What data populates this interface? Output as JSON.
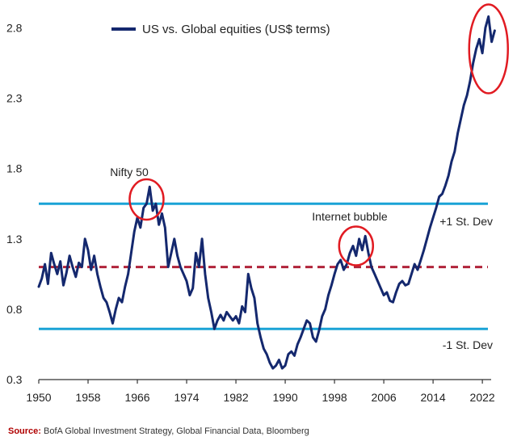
{
  "chart_data": {
    "type": "line",
    "title": "",
    "xlabel": "",
    "ylabel": "",
    "xlim": [
      1950,
      2025
    ],
    "ylim": [
      0.3,
      2.9
    ],
    "x_ticks": [
      1950,
      1958,
      1966,
      1974,
      1982,
      1990,
      1998,
      2006,
      2014,
      2022
    ],
    "y_ticks": [
      0.3,
      0.8,
      1.3,
      1.8,
      2.3,
      2.8
    ],
    "legend": "top-center",
    "series": [
      {
        "name": "US vs. Global equities (US$ terms)",
        "color": "#14286e",
        "points": [
          [
            1950,
            0.96
          ],
          [
            1950.5,
            1.02
          ],
          [
            1951,
            1.12
          ],
          [
            1951.5,
            0.98
          ],
          [
            1952,
            1.2
          ],
          [
            1952.5,
            1.12
          ],
          [
            1953,
            1.05
          ],
          [
            1953.5,
            1.14
          ],
          [
            1954,
            0.97
          ],
          [
            1954.5,
            1.06
          ],
          [
            1955,
            1.18
          ],
          [
            1955.5,
            1.1
          ],
          [
            1956,
            1.03
          ],
          [
            1956.5,
            1.13
          ],
          [
            1957,
            1.1
          ],
          [
            1957.5,
            1.3
          ],
          [
            1958,
            1.22
          ],
          [
            1958.5,
            1.08
          ],
          [
            1959,
            1.18
          ],
          [
            1959.5,
            1.05
          ],
          [
            1960,
            0.96
          ],
          [
            1960.5,
            0.88
          ],
          [
            1961,
            0.85
          ],
          [
            1961.5,
            0.78
          ],
          [
            1962,
            0.7
          ],
          [
            1962.5,
            0.8
          ],
          [
            1963,
            0.88
          ],
          [
            1963.5,
            0.85
          ],
          [
            1964,
            0.96
          ],
          [
            1964.5,
            1.05
          ],
          [
            1965,
            1.2
          ],
          [
            1965.5,
            1.35
          ],
          [
            1966,
            1.45
          ],
          [
            1966.5,
            1.38
          ],
          [
            1967,
            1.52
          ],
          [
            1967.5,
            1.55
          ],
          [
            1968,
            1.67
          ],
          [
            1968.5,
            1.5
          ],
          [
            1969,
            1.55
          ],
          [
            1969.5,
            1.4
          ],
          [
            1970,
            1.48
          ],
          [
            1970.5,
            1.38
          ],
          [
            1971,
            1.1
          ],
          [
            1971.5,
            1.2
          ],
          [
            1972,
            1.3
          ],
          [
            1972.5,
            1.18
          ],
          [
            1973,
            1.1
          ],
          [
            1973.5,
            1.05
          ],
          [
            1974,
            1.0
          ],
          [
            1974.5,
            0.9
          ],
          [
            1975,
            0.95
          ],
          [
            1975.5,
            1.2
          ],
          [
            1976,
            1.1
          ],
          [
            1976.5,
            1.3
          ],
          [
            1977,
            1.05
          ],
          [
            1977.5,
            0.88
          ],
          [
            1978,
            0.78
          ],
          [
            1978.5,
            0.66
          ],
          [
            1979,
            0.72
          ],
          [
            1979.5,
            0.76
          ],
          [
            1980,
            0.72
          ],
          [
            1980.5,
            0.78
          ],
          [
            1981,
            0.75
          ],
          [
            1981.5,
            0.72
          ],
          [
            1982,
            0.75
          ],
          [
            1982.5,
            0.7
          ],
          [
            1983,
            0.82
          ],
          [
            1983.5,
            0.78
          ],
          [
            1984,
            1.05
          ],
          [
            1984.5,
            0.95
          ],
          [
            1985,
            0.88
          ],
          [
            1985.5,
            0.7
          ],
          [
            1986,
            0.6
          ],
          [
            1986.5,
            0.52
          ],
          [
            1987,
            0.48
          ],
          [
            1987.5,
            0.42
          ],
          [
            1988,
            0.38
          ],
          [
            1988.5,
            0.4
          ],
          [
            1989,
            0.44
          ],
          [
            1989.5,
            0.38
          ],
          [
            1990,
            0.4
          ],
          [
            1990.5,
            0.48
          ],
          [
            1991,
            0.5
          ],
          [
            1991.5,
            0.47
          ],
          [
            1992,
            0.55
          ],
          [
            1992.5,
            0.6
          ],
          [
            1993,
            0.66
          ],
          [
            1993.5,
            0.72
          ],
          [
            1994,
            0.7
          ],
          [
            1994.5,
            0.6
          ],
          [
            1995,
            0.57
          ],
          [
            1995.5,
            0.65
          ],
          [
            1996,
            0.75
          ],
          [
            1996.5,
            0.8
          ],
          [
            1997,
            0.9
          ],
          [
            1997.5,
            0.97
          ],
          [
            1998,
            1.05
          ],
          [
            1998.5,
            1.12
          ],
          [
            1999,
            1.15
          ],
          [
            1999.5,
            1.08
          ],
          [
            2000,
            1.12
          ],
          [
            2000.5,
            1.2
          ],
          [
            2001,
            1.25
          ],
          [
            2001.5,
            1.18
          ],
          [
            2002,
            1.3
          ],
          [
            2002.5,
            1.22
          ],
          [
            2003,
            1.32
          ],
          [
            2003.5,
            1.2
          ],
          [
            2004,
            1.1
          ],
          [
            2004.5,
            1.05
          ],
          [
            2005,
            1.0
          ],
          [
            2005.5,
            0.95
          ],
          [
            2006,
            0.9
          ],
          [
            2006.5,
            0.92
          ],
          [
            2007,
            0.86
          ],
          [
            2007.5,
            0.85
          ],
          [
            2008,
            0.92
          ],
          [
            2008.5,
            0.98
          ],
          [
            2009,
            1.0
          ],
          [
            2009.5,
            0.97
          ],
          [
            2010,
            0.98
          ],
          [
            2010.5,
            1.05
          ],
          [
            2011,
            1.12
          ],
          [
            2011.5,
            1.08
          ],
          [
            2012,
            1.15
          ],
          [
            2012.5,
            1.22
          ],
          [
            2013,
            1.3
          ],
          [
            2013.5,
            1.38
          ],
          [
            2014,
            1.45
          ],
          [
            2014.5,
            1.52
          ],
          [
            2015,
            1.6
          ],
          [
            2015.5,
            1.62
          ],
          [
            2016,
            1.68
          ],
          [
            2016.5,
            1.75
          ],
          [
            2017,
            1.85
          ],
          [
            2017.5,
            1.92
          ],
          [
            2018,
            2.05
          ],
          [
            2018.5,
            2.15
          ],
          [
            2019,
            2.25
          ],
          [
            2019.5,
            2.32
          ],
          [
            2020,
            2.42
          ],
          [
            2020.5,
            2.55
          ],
          [
            2021,
            2.65
          ],
          [
            2021.5,
            2.72
          ],
          [
            2022,
            2.62
          ],
          [
            2022.5,
            2.8
          ],
          [
            2023,
            2.88
          ],
          [
            2023.5,
            2.7
          ],
          [
            2024,
            2.78
          ]
        ]
      }
    ],
    "reference_lines": [
      {
        "name": "mean",
        "value": 1.1,
        "color": "#b0243a",
        "style": "dashed",
        "label": ""
      },
      {
        "name": "plus-1-sd",
        "value": 1.55,
        "color": "#1aa3d6",
        "style": "solid",
        "label": "+1 St. Dev"
      },
      {
        "name": "minus-1-sd",
        "value": 0.66,
        "color": "#1aa3d6",
        "style": "solid",
        "label": "-1 St. Dev"
      }
    ],
    "annotations": [
      {
        "name": "nifty-50",
        "text": "Nifty 50",
        "x": 1967.5,
        "y": 1.58
      },
      {
        "name": "internet-bubble",
        "text": "Internet bubble",
        "x": 2001.5,
        "y": 1.25
      },
      {
        "name": "recent-peak",
        "text": "",
        "x": 2023,
        "y": 2.65
      }
    ],
    "annotation_color": "#e11b22"
  },
  "source": {
    "label": "Source:",
    "text": "BofA Global Investment Strategy, Global Financial Data, Bloomberg"
  }
}
